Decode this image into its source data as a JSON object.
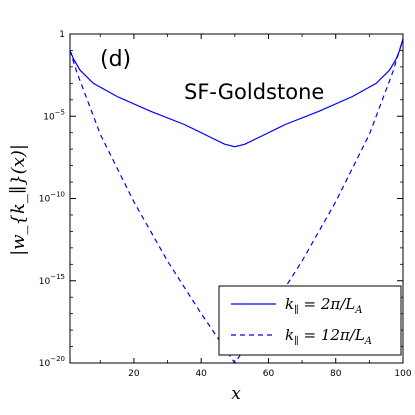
{
  "chart_data": {
    "type": "line",
    "panel_label": "(d)",
    "annotation": "SF-Goldstone",
    "xlabel": "x",
    "ylabel": "|w_{k_∥}(x)|",
    "xlim": [
      1,
      100
    ],
    "ylim_log10": [
      -20,
      0
    ],
    "yscale": "log",
    "xticks": [
      20,
      40,
      60,
      80,
      100
    ],
    "yticks": [
      {
        "exp": 0,
        "label": "1",
        "sup": ""
      },
      {
        "exp": -5,
        "label": "10",
        "sup": "−5"
      },
      {
        "exp": -10,
        "label": "10",
        "sup": "−10"
      },
      {
        "exp": -15,
        "label": "10",
        "sup": "−15"
      },
      {
        "exp": -20,
        "label": "10",
        "sup": "−20"
      }
    ],
    "grid": false,
    "legend_position": "lower-right",
    "series": [
      {
        "name": "k∥ = 2π/L_A",
        "legend_label": {
          "prefix": "k",
          "sub": "∥",
          "rest": " = 2π/L",
          "sub2": "A"
        },
        "style": "solid",
        "color": "#0000ff",
        "x": [
          1,
          2,
          4,
          8,
          15,
          25,
          35,
          42,
          47,
          50,
          53,
          58,
          65,
          75,
          85,
          92,
          96,
          98,
          99,
          100
        ],
        "log10": [
          -1.0,
          -1.5,
          -2.2,
          -3.0,
          -3.8,
          -4.7,
          -5.5,
          -6.2,
          -6.7,
          -6.85,
          -6.7,
          -6.2,
          -5.5,
          -4.7,
          -3.8,
          -3.0,
          -2.2,
          -1.5,
          -1.0,
          -0.3
        ]
      },
      {
        "name": "k∥ = 12π/L_A",
        "legend_label": {
          "prefix": "k",
          "sub": "∥",
          "rest": " = 12π/L",
          "sub2": "A"
        },
        "style": "dashed",
        "color": "#0000ff",
        "x": [
          1,
          3,
          10,
          20,
          30,
          40,
          45,
          50,
          55,
          60,
          70,
          80,
          90,
          97,
          100
        ],
        "log10": [
          -1.0,
          -2.3,
          -6.1,
          -10.2,
          -13.8,
          -17.0,
          -18.5,
          -20.0,
          -18.5,
          -17.0,
          -13.8,
          -10.2,
          -6.1,
          -2.3,
          -0.3
        ]
      }
    ]
  }
}
